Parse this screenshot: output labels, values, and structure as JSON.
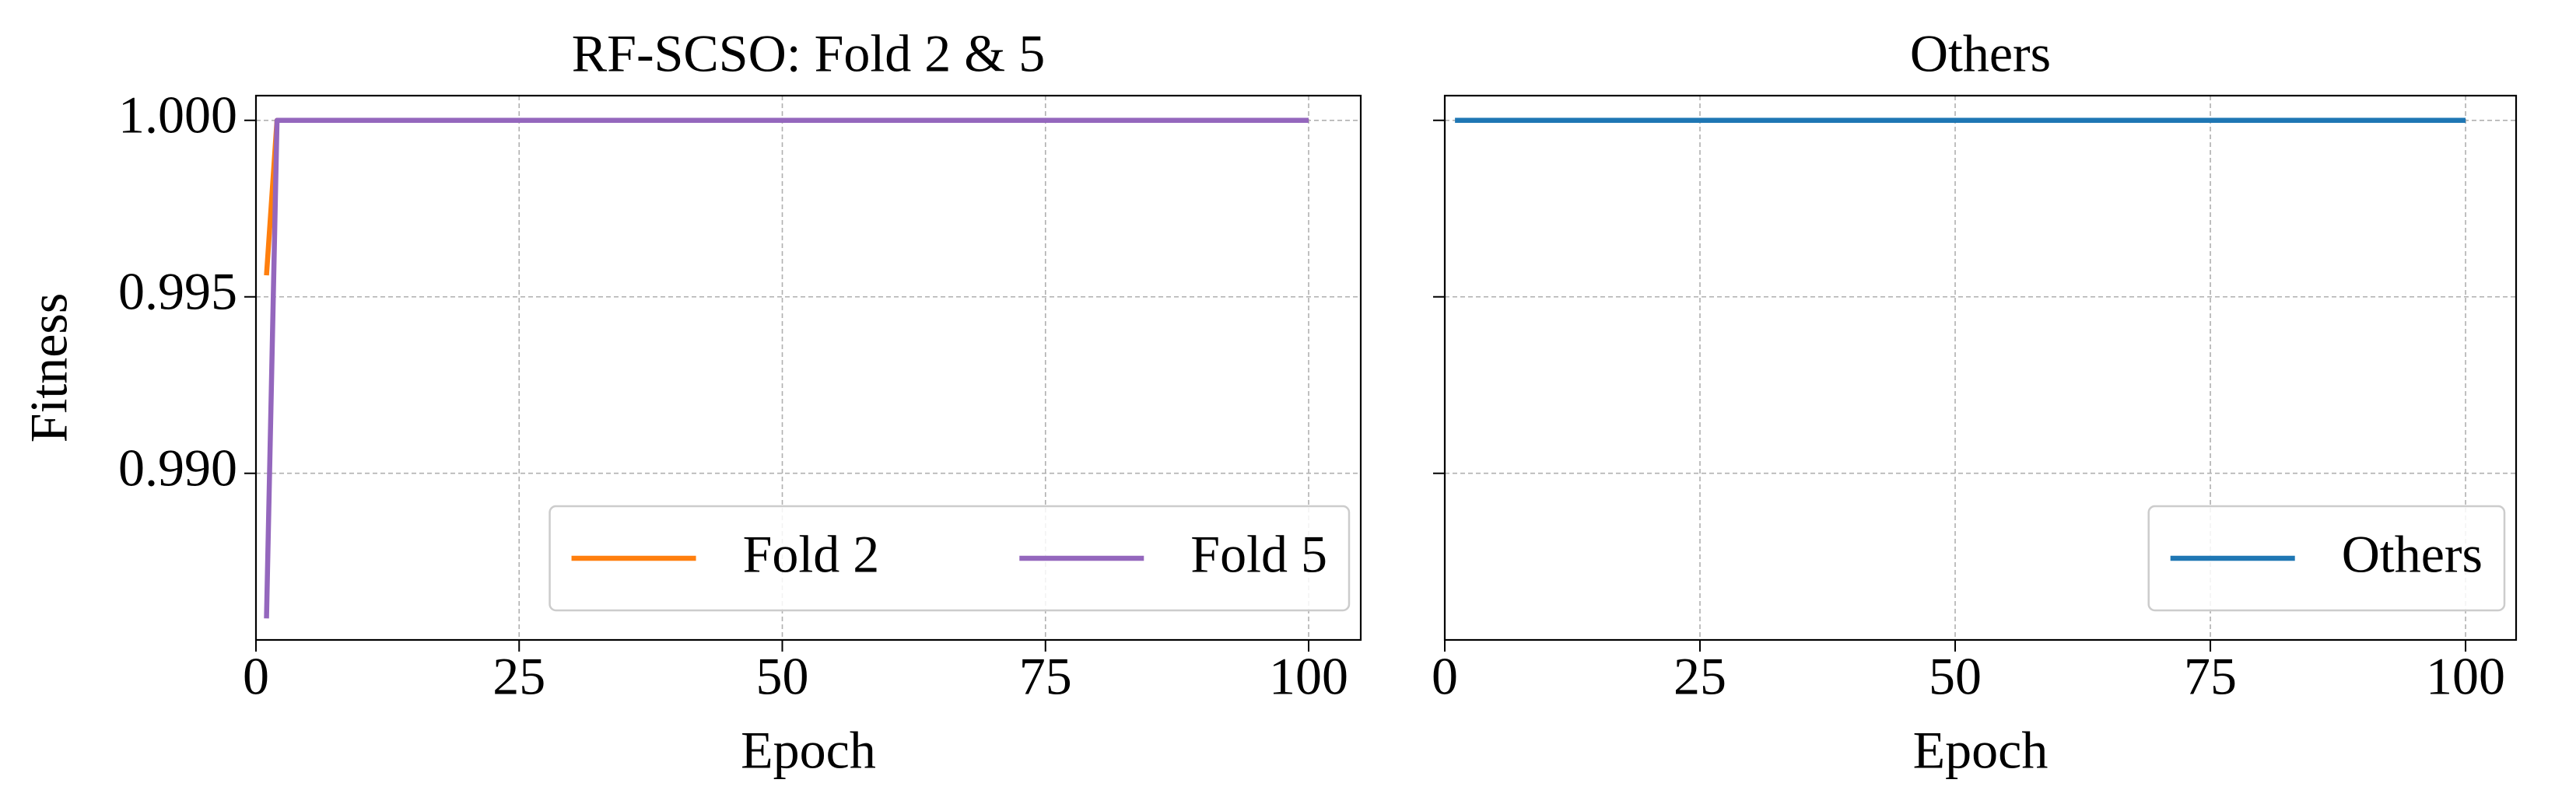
{
  "chart_data": [
    {
      "type": "line",
      "title": "RF-SCSO: Fold 2 & 5",
      "x_label": "Epoch",
      "y_label": "Fitness",
      "x": [
        1,
        2,
        100
      ],
      "series": [
        {
          "name": "Fold 2",
          "color": "#ff7f0e",
          "values": [
            0.99561,
            1.0,
            1.0
          ]
        },
        {
          "name": "Fold 5",
          "color": "#9467bd",
          "values": [
            0.98589,
            1.0,
            1.0
          ]
        }
      ],
      "xlim": [
        0,
        104.95
      ],
      "xticks": [
        0,
        25,
        50,
        75,
        100
      ],
      "ylim": [
        0.98528,
        1.0007
      ],
      "yticks": [
        {
          "value": 0.99,
          "label": "0.990"
        },
        {
          "value": 0.995,
          "label": "0.995"
        },
        {
          "value": 1.0,
          "label": "1.000"
        }
      ],
      "grid": true,
      "legend": "lower right",
      "legend_columns": 2
    },
    {
      "type": "line",
      "title": "Others",
      "x_label": "Epoch",
      "x": [
        1,
        100
      ],
      "series": [
        {
          "name": "Others",
          "color": "#1f77b4",
          "values": [
            1.0,
            1.0
          ]
        }
      ],
      "xlim": [
        0,
        104.95
      ],
      "xticks": [
        0,
        25,
        50,
        75,
        100
      ],
      "ylim": [
        0.98528,
        1.0007
      ],
      "yticks": [
        0.99,
        0.995,
        1.0
      ],
      "sharey": true,
      "grid": true,
      "legend": "lower right",
      "legend_columns": 1
    }
  ]
}
